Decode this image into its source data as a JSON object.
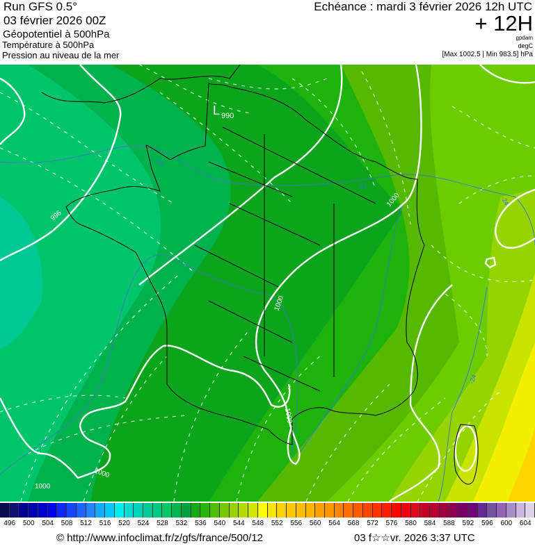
{
  "header": {
    "run": "Run GFS 0.5°",
    "run_date": "03 février 2026 00Z",
    "field1": "Géopotentiel à 500hPa",
    "field2": "Température à 500hPa",
    "field3": "Pression au niveau de la mer",
    "echeance": "Echéance : mardi 3 février 2026 12h UTC",
    "lead": "+ 12H",
    "unit1": "gpdam",
    "unit2": "degC",
    "pressure_range": "[Max 1002.5 | Min 983.5] hPa"
  },
  "map": {
    "low_letter": "L",
    "low_value": "990",
    "isobar_labels": [
      "996",
      "1000",
      "1000",
      "1000",
      "1000",
      "1000"
    ],
    "temperature_labels": [
      "-24",
      "-24",
      "-24",
      "-24"
    ],
    "isobar_color": "#ffffff",
    "isotherm_color": "#3a78c0",
    "coastline_color": "#000000"
  },
  "colorbar": {
    "labels": [
      "496",
      "500",
      "504",
      "508",
      "512",
      "516",
      "520",
      "524",
      "528",
      "532",
      "536",
      "540",
      "544",
      "548",
      "552",
      "556",
      "560",
      "564",
      "568",
      "572",
      "576",
      "580",
      "584",
      "588",
      "592",
      "596",
      "600",
      "604"
    ],
    "colors": [
      "#0a0a4e",
      "#101070",
      "#00008c",
      "#0000aa",
      "#0000cc",
      "#0000ea",
      "#0a28ff",
      "#1446ff",
      "#1e64ff",
      "#2882ff",
      "#14aaff",
      "#0ac8ff",
      "#00f0f0",
      "#00dcd2",
      "#00d2b4",
      "#00c896",
      "#00c882",
      "#00c864",
      "#00b450",
      "#00a03c",
      "#14aa14",
      "#28b40a",
      "#50be00",
      "#78c800",
      "#96d200",
      "#b4dc00",
      "#d2e600",
      "#ffff00",
      "#ffe600",
      "#ffd200",
      "#ffc800",
      "#ffbe00",
      "#ffb400",
      "#ffa000",
      "#ff9600",
      "#ff8200",
      "#ff6e00",
      "#ff5a00",
      "#ff4600",
      "#ff3200",
      "#ff1e00",
      "#ff0000",
      "#f00014",
      "#dc0a1e",
      "#c80028",
      "#b40032",
      "#a0003c",
      "#8c0050",
      "#780064",
      "#6e0078",
      "#642896",
      "#7850a0",
      "#9664b4",
      "#aa8cc8",
      "#c8b4dc",
      "#dcd2e6"
    ]
  },
  "footer": {
    "source": "© http://www.infoclimat.fr/z/gfs/france/500/12",
    "generated": "03 f☆☆vr. 2026  3:37 UTC"
  }
}
